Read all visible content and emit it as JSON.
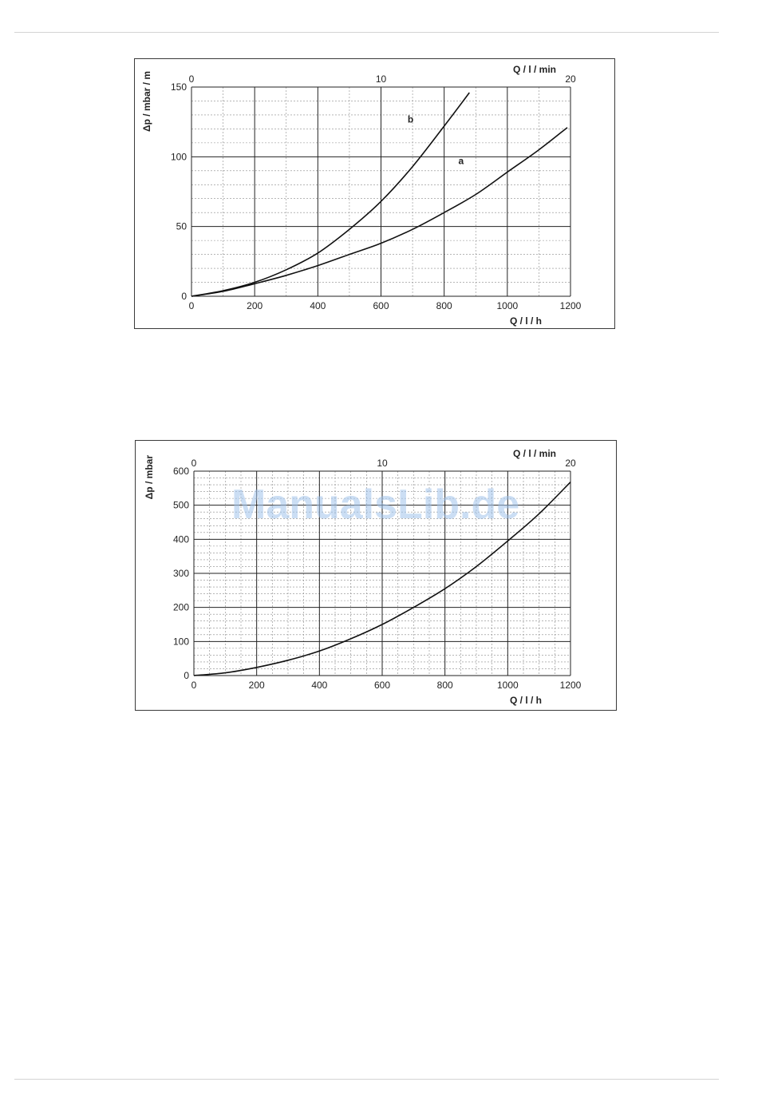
{
  "watermark": "ManualsLib.de",
  "chart_data": [
    {
      "type": "line",
      "title": "",
      "xlabel": "Q / l / h",
      "x2label": "Q / l / min",
      "ylabel": "Δp / mbar / m",
      "xlim": [
        0,
        1200
      ],
      "x2lim": [
        0,
        20
      ],
      "ylim": [
        0,
        150
      ],
      "xticks": [
        0,
        200,
        400,
        600,
        800,
        1000,
        1200
      ],
      "x2ticks": [
        0,
        10,
        20
      ],
      "yticks": [
        0,
        50,
        100,
        150
      ],
      "grid": true,
      "series": [
        {
          "name": "a",
          "x": [
            0,
            100,
            200,
            300,
            400,
            500,
            600,
            700,
            800,
            900,
            1000,
            1100,
            1190
          ],
          "y": [
            0,
            3.5,
            9,
            15,
            22,
            30,
            38,
            48,
            60,
            73,
            89,
            105,
            121
          ]
        },
        {
          "name": "b",
          "x": [
            0,
            100,
            200,
            300,
            400,
            500,
            600,
            700,
            800,
            880
          ],
          "y": [
            0,
            4,
            10,
            19,
            31,
            48,
            68,
            93,
            122,
            146
          ]
        }
      ]
    },
    {
      "type": "line",
      "title": "",
      "xlabel": "Q / l / h",
      "x2label": "Q / l / min",
      "ylabel": "Δp / mbar",
      "xlim": [
        0,
        1200
      ],
      "x2lim": [
        0,
        20
      ],
      "ylim": [
        0,
        600
      ],
      "xticks": [
        0,
        200,
        400,
        600,
        800,
        1000,
        1200
      ],
      "x2ticks": [
        0,
        10,
        20
      ],
      "yticks": [
        0,
        100,
        200,
        300,
        400,
        500,
        600
      ],
      "grid": true,
      "series": [
        {
          "name": "",
          "x": [
            0,
            100,
            200,
            300,
            400,
            500,
            600,
            700,
            800,
            900,
            1000,
            1100,
            1200
          ],
          "y": [
            0,
            8,
            24,
            45,
            72,
            108,
            150,
            200,
            255,
            320,
            395,
            475,
            568
          ]
        }
      ]
    }
  ]
}
